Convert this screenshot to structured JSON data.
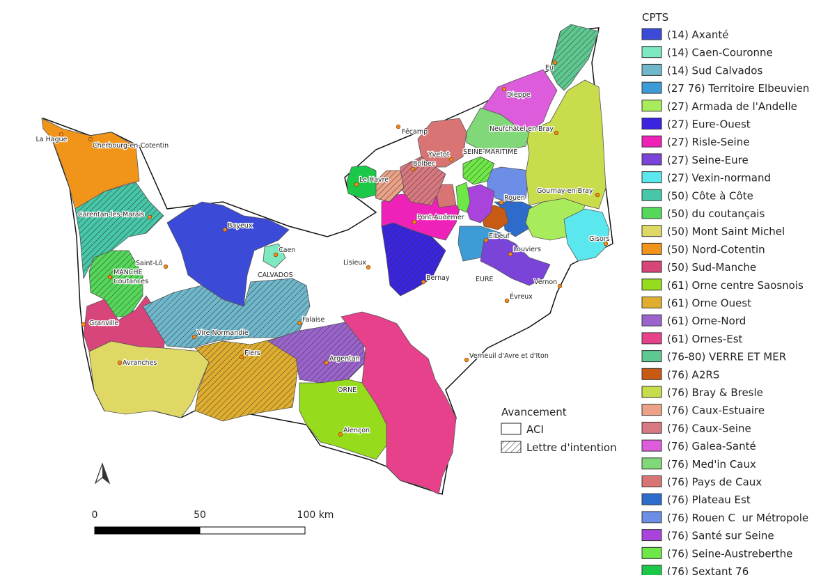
{
  "legend": {
    "title": "CPTS",
    "items": [
      {
        "label": "(14) Axanté",
        "color": "#3b4bd8"
      },
      {
        "label": "(14) Caen-Couronne",
        "color": "#7ee8c0"
      },
      {
        "label": "(14) Sud Calvados",
        "color": "#6fb8cc"
      },
      {
        "label": "(27 76) Territoire Elbeuvien",
        "color": "#3d9bd6"
      },
      {
        "label": "(27) Armada de l'Andelle",
        "color": "#a8ec5c"
      },
      {
        "label": "(27) Eure-Ouest",
        "color": "#3a24e0"
      },
      {
        "label": "(27) Risle-Seine",
        "color": "#ee22b8"
      },
      {
        "label": "(27) Seine-Eure",
        "color": "#7a44d8"
      },
      {
        "label": "(27) Vexin-normand",
        "color": "#5ae8ee"
      },
      {
        "label": "(50) Côte à Côte",
        "color": "#45c7a8"
      },
      {
        "label": "(50) du coutançais",
        "color": "#55d85a"
      },
      {
        "label": "(50) Mont Saint Michel",
        "color": "#e0d864"
      },
      {
        "label": "(50) Nord-Cotentin",
        "color": "#f0941a"
      },
      {
        "label": "(50) Sud-Manche",
        "color": "#d8457a"
      },
      {
        "label": "(61) Orne centre Saosnois",
        "color": "#96dc1c"
      },
      {
        "label": "(61) Orne Ouest",
        "color": "#e0ae2e"
      },
      {
        "label": "(61) Orne-Nord",
        "color": "#9a64cc"
      },
      {
        "label": "(61) Ornes-Est",
        "color": "#e8418c"
      },
      {
        "label": "(76-80) VERRE ET MER",
        "color": "#5ec890"
      },
      {
        "label": "(76) A2RS",
        "color": "#c85a14"
      },
      {
        "label": "(76) Bray & Bresle",
        "color": "#c8dc4c"
      },
      {
        "label": "(76) Caux-Estuaire",
        "color": "#eca286"
      },
      {
        "label": "(76) Caux-Seine",
        "color": "#d87880"
      },
      {
        "label": "(76) Galea-Santé",
        "color": "#dc5cdc"
      },
      {
        "label": "(76) Med'in Caux",
        "color": "#80d878"
      },
      {
        "label": "(76) Pays de Caux",
        "color": "#d87474"
      },
      {
        "label": "(76) Plateau Est",
        "color": "#2e6ccc"
      },
      {
        "label": "(76) Rouen C  ur Métropole",
        "color": "#6c8ee6"
      },
      {
        "label": "(76) Santé sur Seine",
        "color": "#a844dc"
      },
      {
        "label": "(76) Seine-Austreberthe",
        "color": "#6ee846"
      },
      {
        "label": "(76) Sextant 76",
        "color": "#1cc848"
      }
    ]
  },
  "status_legend": {
    "title": "Avancement",
    "items": [
      "ACI",
      "Lettre d'intention"
    ]
  },
  "places": [
    "La Hague",
    "Cherbourg-en-Cotentin",
    "Carentan-les-Marais",
    "Saint-Lô",
    "Coutances",
    "Granville",
    "Avranches",
    "Bayeux",
    "Caen",
    "Vire Normandie",
    "Flers",
    "Falaise",
    "Argentan",
    "Alençon",
    "Lisieux",
    "Fécamp",
    "Yvetot",
    "Bolbec",
    "Le Havre",
    "Pont-Audemer",
    "Bernay",
    "Dieppe",
    "Eu",
    "Neufchâtel-en-Bray",
    "Rouen",
    "Elbeuf",
    "Louviers",
    "Gournay-en-Bray",
    "Gisors",
    "Vernon",
    "Évreux",
    "Verneuil d'Avre et d'Iton"
  ],
  "departments": [
    "SEINE-MARITIME",
    "CALVADOS",
    "EURE",
    "ORNE",
    "MANCHE"
  ],
  "scale": {
    "labels": [
      "0",
      "50",
      "100 km"
    ]
  }
}
